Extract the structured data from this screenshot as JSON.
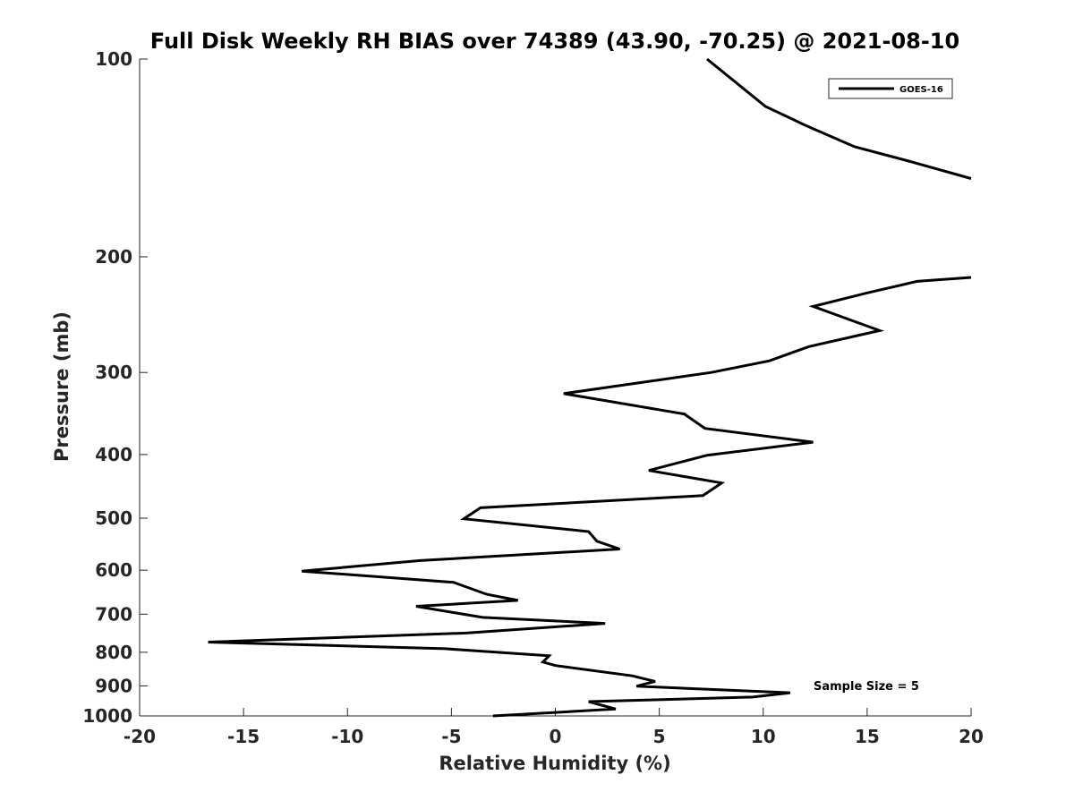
{
  "chart_data": {
    "type": "line",
    "title": "Full Disk Weekly RH BIAS over 74389 (43.90, -70.25) @ 2021-08-10",
    "xlabel": "Relative Humidity (%)",
    "ylabel": "Pressure (mb)",
    "xlim": [
      -20,
      20
    ],
    "ylim": [
      1000,
      100
    ],
    "yscale": "log",
    "y_reversed": true,
    "grid": false,
    "legend_position": "top-right",
    "x_ticks": [
      -20,
      -15,
      -10,
      -5,
      0,
      5,
      10,
      15,
      20
    ],
    "y_ticks": [
      100,
      200,
      300,
      400,
      500,
      600,
      700,
      800,
      900,
      1000
    ],
    "annotation": "Sample Size = 5",
    "series": [
      {
        "name": "GOES-16",
        "color": "#000000",
        "segments": [
          [
            {
              "x": 7.3,
              "y": 100
            },
            {
              "x": 10.1,
              "y": 118
            },
            {
              "x": 12.0,
              "y": 126
            },
            {
              "x": 14.4,
              "y": 136
            },
            {
              "x": 17.0,
              "y": 143
            },
            {
              "x": 20.0,
              "y": 152
            }
          ],
          [
            {
              "x": 20.0,
              "y": 215
            },
            {
              "x": 17.4,
              "y": 218
            },
            {
              "x": 15.0,
              "y": 227
            },
            {
              "x": 12.4,
              "y": 238
            },
            {
              "x": 15.6,
              "y": 259
            },
            {
              "x": 12.2,
              "y": 274
            },
            {
              "x": 10.3,
              "y": 288
            },
            {
              "x": 7.5,
              "y": 300
            },
            {
              "x": 0.4,
              "y": 323
            },
            {
              "x": 6.2,
              "y": 347
            },
            {
              "x": 7.2,
              "y": 365
            },
            {
              "x": 12.4,
              "y": 383
            },
            {
              "x": 7.3,
              "y": 401
            },
            {
              "x": 4.5,
              "y": 423
            },
            {
              "x": 8.0,
              "y": 442
            },
            {
              "x": 7.1,
              "y": 462
            },
            {
              "x": -3.6,
              "y": 482
            },
            {
              "x": -4.4,
              "y": 501
            },
            {
              "x": 1.6,
              "y": 524
            },
            {
              "x": 2.0,
              "y": 542
            },
            {
              "x": 3.1,
              "y": 557
            },
            {
              "x": -6.5,
              "y": 580
            },
            {
              "x": -12.2,
              "y": 602
            },
            {
              "x": -4.9,
              "y": 626
            },
            {
              "x": -3.3,
              "y": 653
            },
            {
              "x": -1.8,
              "y": 667
            },
            {
              "x": -6.7,
              "y": 681
            },
            {
              "x": -3.5,
              "y": 708
            },
            {
              "x": 2.4,
              "y": 723
            },
            {
              "x": -4.3,
              "y": 748
            },
            {
              "x": -16.7,
              "y": 772
            },
            {
              "x": -5.3,
              "y": 790
            },
            {
              "x": -0.3,
              "y": 810
            },
            {
              "x": -0.6,
              "y": 828
            },
            {
              "x": 0.0,
              "y": 838
            },
            {
              "x": 3.7,
              "y": 869
            },
            {
              "x": 4.8,
              "y": 886
            },
            {
              "x": 3.9,
              "y": 901
            },
            {
              "x": 11.3,
              "y": 922
            },
            {
              "x": 9.5,
              "y": 936
            },
            {
              "x": 1.6,
              "y": 951
            },
            {
              "x": 2.9,
              "y": 976
            },
            {
              "x": -3.0,
              "y": 1000
            }
          ]
        ]
      }
    ]
  }
}
